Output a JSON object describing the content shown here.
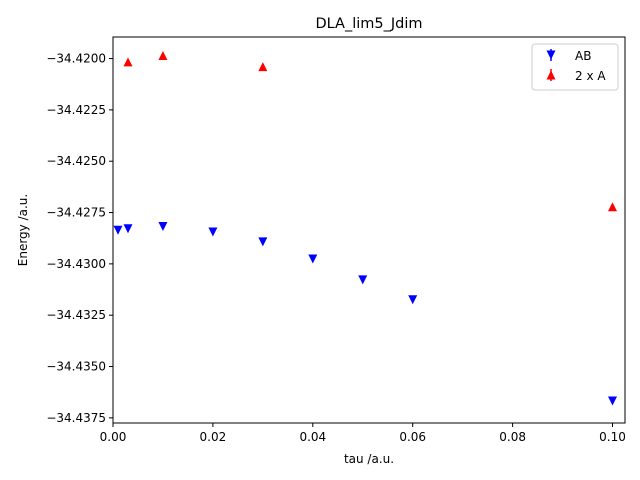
{
  "chart_data": {
    "type": "scatter",
    "title": "DLA_lim5_Jdim",
    "xlabel": "tau /a.u.",
    "ylabel": "Energy /a.u.",
    "xlim": [
      0.0,
      0.1025
    ],
    "ylim": [
      -34.43775,
      -34.41895
    ],
    "x_ticks": [
      0.0,
      0.02,
      0.04,
      0.06,
      0.08,
      0.1
    ],
    "x_tick_labels": [
      "0.00",
      "0.02",
      "0.04",
      "0.06",
      "0.08",
      "0.10"
    ],
    "y_ticks": [
      -34.42,
      -34.4225,
      -34.425,
      -34.4275,
      -34.43,
      -34.4325,
      -34.435,
      -34.4375
    ],
    "y_tick_labels": [
      "−34.4200",
      "−34.4225",
      "−34.4250",
      "−34.4275",
      "−34.4300",
      "−34.4325",
      "−34.4350",
      "−34.4375"
    ],
    "grid": false,
    "legend_position": "top-right",
    "series": [
      {
        "name": "AB",
        "color": "#0000ff",
        "marker": "triangle-down",
        "x": [
          0.001,
          0.003,
          0.01,
          0.02,
          0.03,
          0.04,
          0.05,
          0.06,
          0.1
        ],
        "y": [
          -34.42836,
          -34.42829,
          -34.42818,
          -34.42845,
          -34.42893,
          -34.42976,
          -34.43078,
          -34.43175,
          -34.43668
        ]
      },
      {
        "name": "2 x A",
        "color": "#ff0000",
        "marker": "triangle-up",
        "x": [
          0.003,
          0.01,
          0.03,
          0.1
        ],
        "y": [
          -34.42016,
          -34.41985,
          -34.42039,
          -34.42722
        ]
      }
    ]
  }
}
